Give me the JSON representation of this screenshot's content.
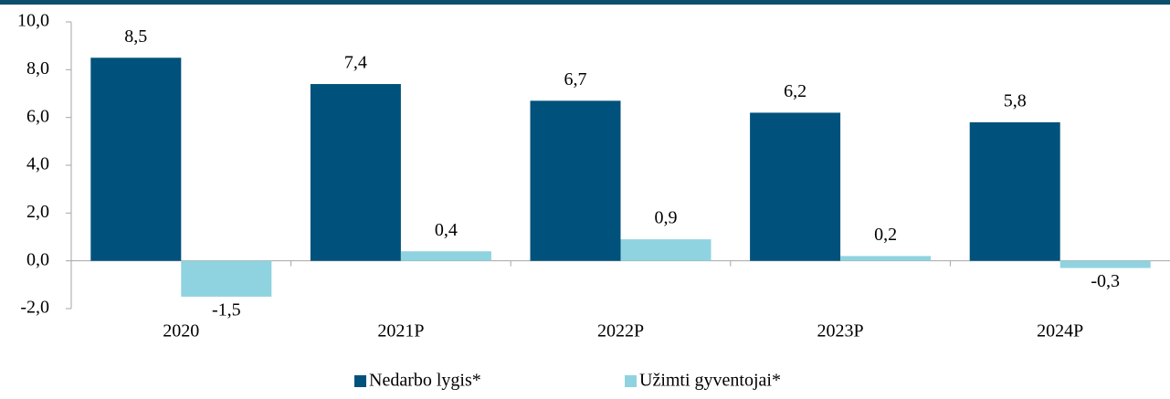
{
  "chart_data": {
    "type": "bar",
    "categories": [
      "2020",
      "2021P",
      "2022P",
      "2023P",
      "2024P"
    ],
    "series": [
      {
        "name": "Nedarbo lygis*",
        "color": "#00527c",
        "values": [
          8.5,
          7.4,
          6.7,
          6.2,
          5.8
        ],
        "value_labels": [
          "8,5",
          "7,4",
          "6,7",
          "6,2",
          "5,8"
        ]
      },
      {
        "name": "Užimti gyventojai*",
        "color": "#8fd3e0",
        "values": [
          -1.5,
          0.4,
          0.9,
          0.2,
          -0.3
        ],
        "value_labels": [
          "-1,5",
          "0,4",
          "0,9",
          "0,2",
          "-0,3"
        ]
      }
    ],
    "ylim": [
      -2,
      10
    ],
    "yticks": [
      {
        "value": -2,
        "label": "-2,0"
      },
      {
        "value": 0,
        "label": "0,0"
      },
      {
        "value": 2,
        "label": "2,0"
      },
      {
        "value": 4,
        "label": "4,0"
      },
      {
        "value": 6,
        "label": "6,0"
      },
      {
        "value": 8,
        "label": "8,0"
      },
      {
        "value": 10,
        "label": "10,0"
      }
    ],
    "legend": "bottom"
  }
}
